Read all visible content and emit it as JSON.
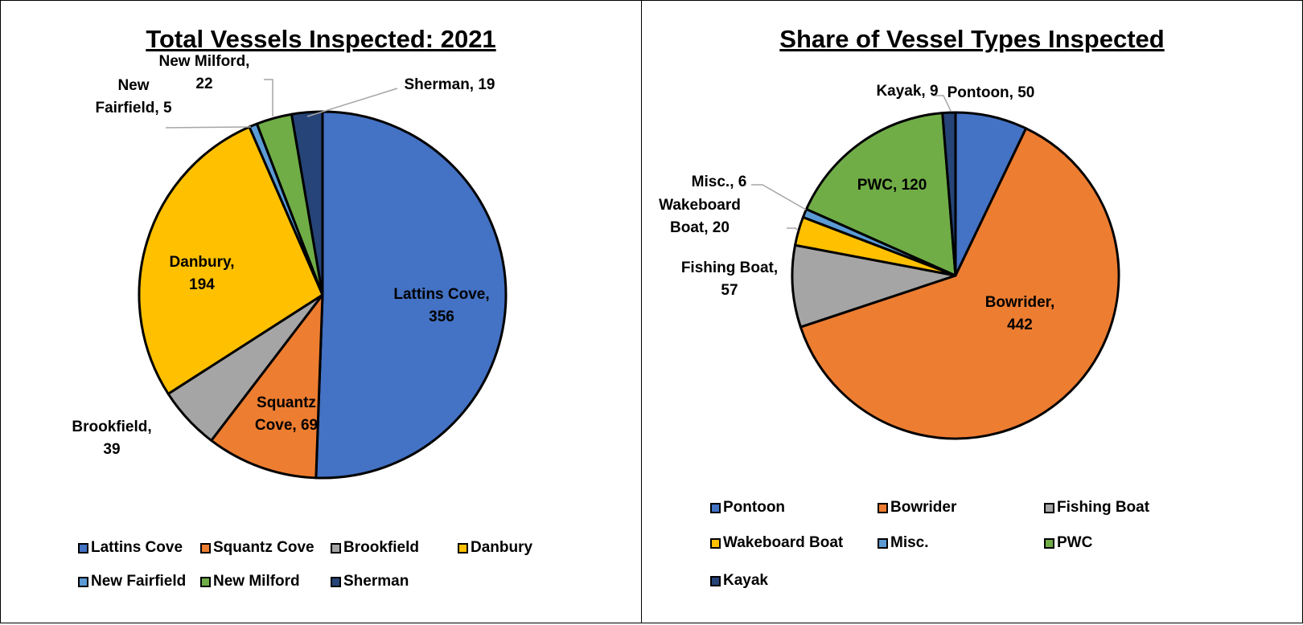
{
  "chart_data": [
    {
      "type": "pie",
      "title": "Total Vessels Inspected: 2021",
      "slices": [
        {
          "name": "Lattins Cove",
          "value": 356,
          "color": "#4472C4",
          "label": [
            "Lattins Cove,",
            "356"
          ]
        },
        {
          "name": "Squantz Cove",
          "value": 69,
          "color": "#ED7D31",
          "label": [
            "Squantz",
            "Cove, 69"
          ]
        },
        {
          "name": "Brookfield",
          "value": 39,
          "color": "#A5A5A5",
          "label": [
            "Brookfield,",
            "39"
          ]
        },
        {
          "name": "Danbury",
          "value": 194,
          "color": "#FFC000",
          "label": [
            "Danbury,",
            "194"
          ]
        },
        {
          "name": "New Fairfield",
          "value": 5,
          "color": "#5B9BD5",
          "label": [
            "New",
            "Fairfield, 5"
          ]
        },
        {
          "name": "New Milford",
          "value": 22,
          "color": "#70AD47",
          "label": [
            "New Milford,",
            "22"
          ]
        },
        {
          "name": "Sherman",
          "value": 19,
          "color": "#264478",
          "label": [
            "Sherman, 19"
          ]
        }
      ],
      "legend": [
        "Lattins Cove",
        "Squantz Cove",
        "Brookfield",
        "Danbury",
        "New Fairfield",
        "New Milford",
        "Sherman"
      ],
      "legend_position": "bottom"
    },
    {
      "type": "pie",
      "title": "Share of Vessel Types Inspected",
      "slices": [
        {
          "name": "Pontoon",
          "value": 50,
          "color": "#4472C4",
          "label": [
            "Pontoon, 50"
          ]
        },
        {
          "name": "Bowrider",
          "value": 442,
          "color": "#ED7D31",
          "label": [
            "Bowrider,",
            "442"
          ]
        },
        {
          "name": "Fishing Boat",
          "value": 57,
          "color": "#A5A5A5",
          "label": [
            "Fishing Boat,",
            "57"
          ]
        },
        {
          "name": "Wakeboard Boat",
          "value": 20,
          "color": "#FFC000",
          "label": [
            "Wakeboard",
            "Boat, 20"
          ]
        },
        {
          "name": "Misc.",
          "value": 6,
          "color": "#5B9BD5",
          "label": [
            "Misc., 6"
          ]
        },
        {
          "name": "PWC",
          "value": 120,
          "color": "#70AD47",
          "label": [
            "PWC, 120"
          ]
        },
        {
          "name": "Kayak",
          "value": 9,
          "color": "#264478",
          "label": [
            "Kayak, 9"
          ]
        }
      ],
      "legend": [
        "Pontoon",
        "Bowrider",
        "Fishing Boat",
        "Wakeboard Boat",
        "Misc.",
        "PWC",
        "Kayak"
      ],
      "legend_position": "bottom"
    }
  ]
}
